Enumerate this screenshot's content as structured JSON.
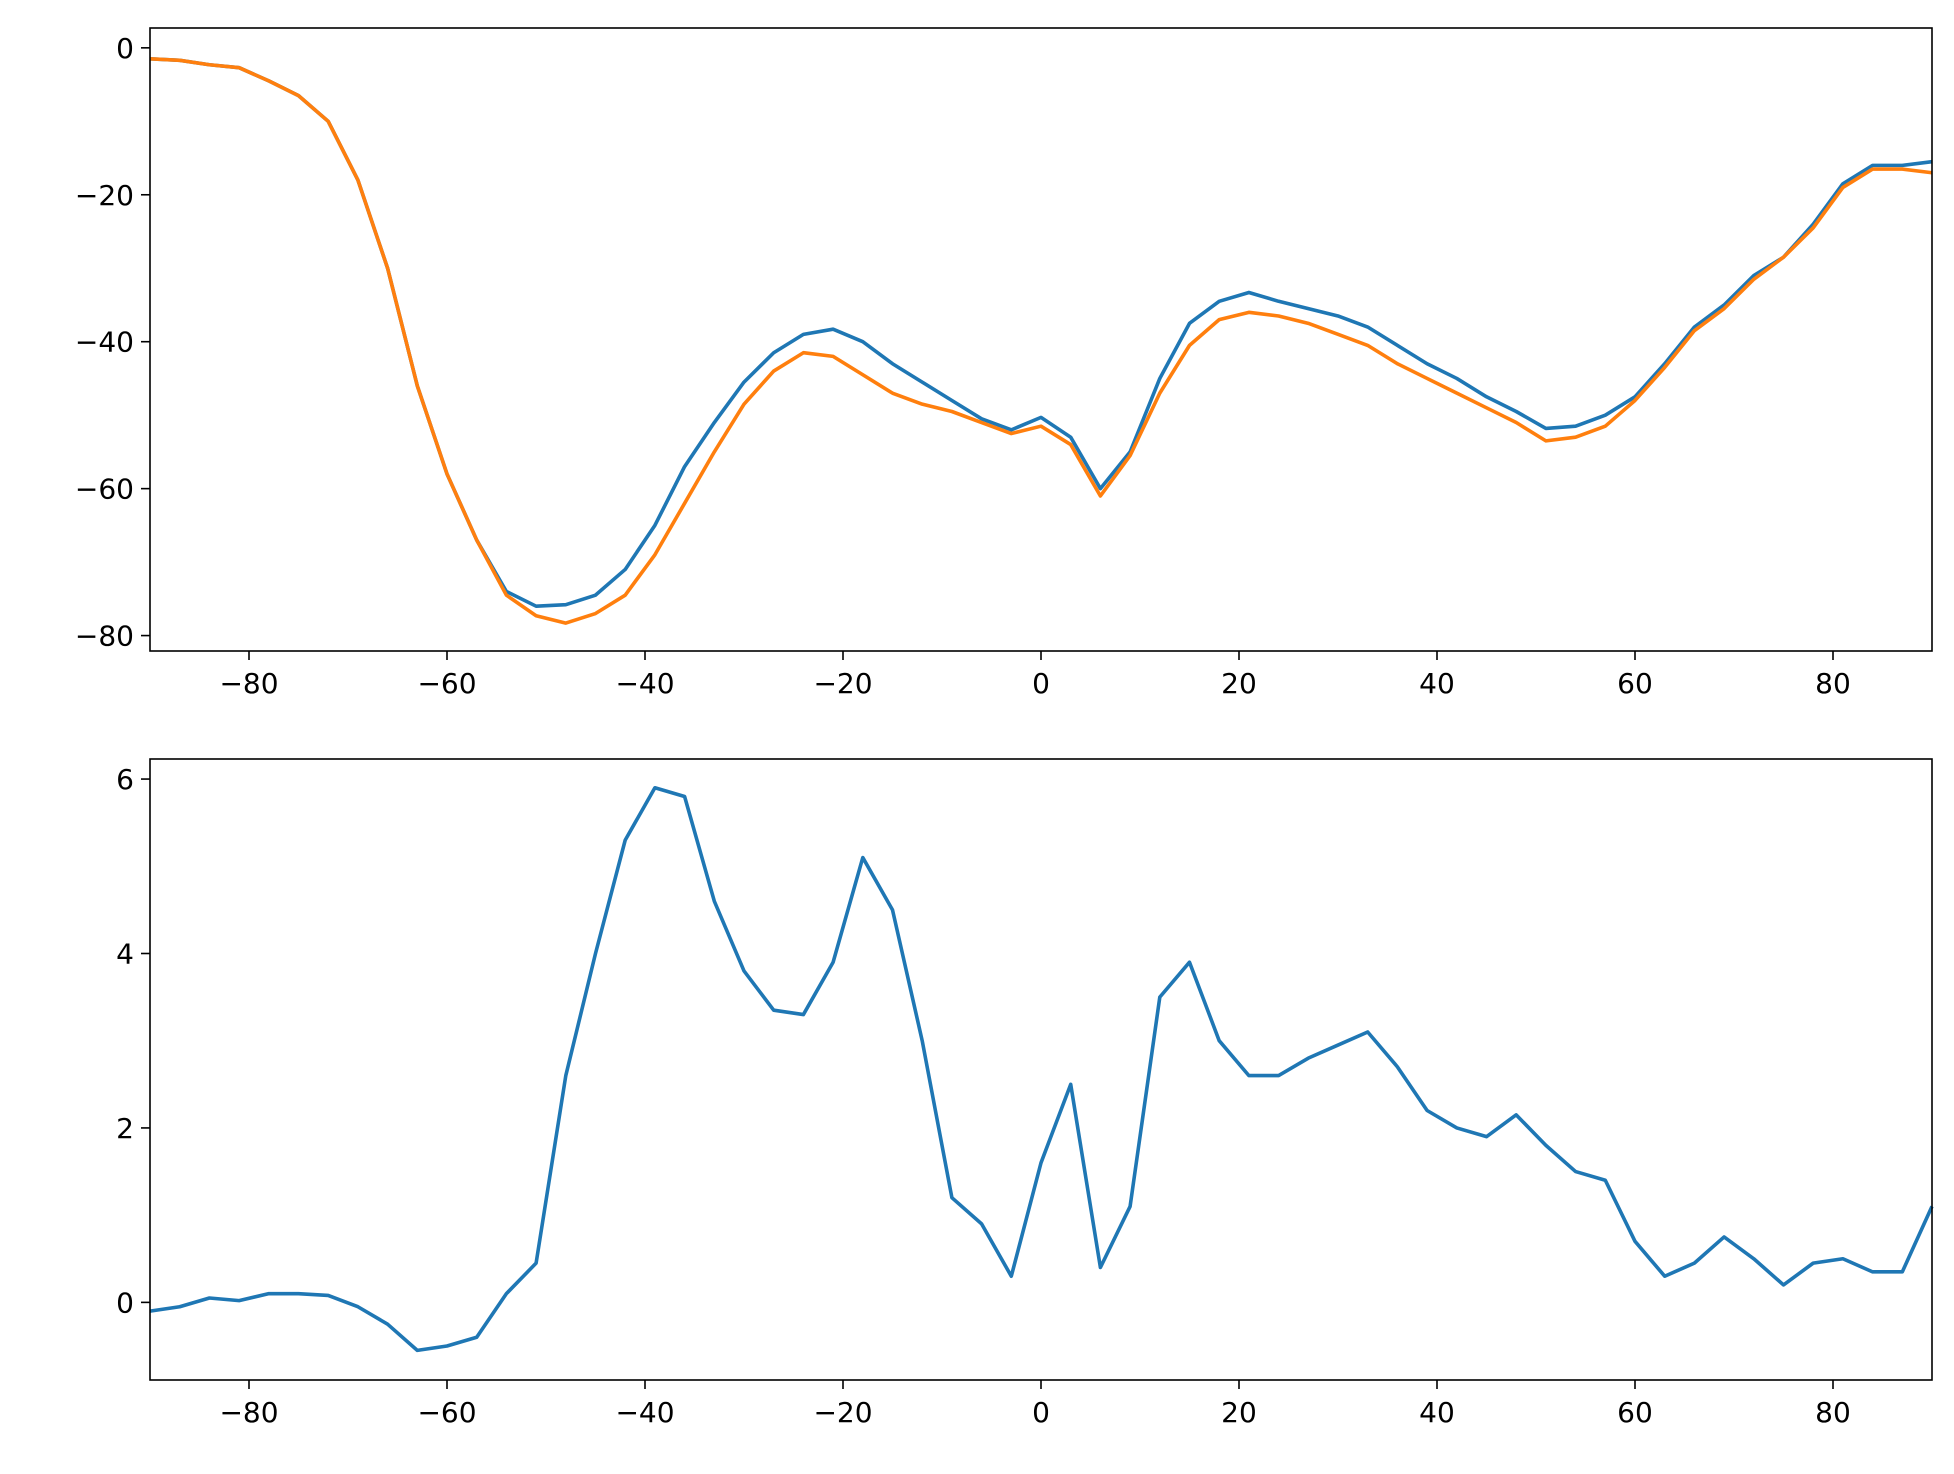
{
  "chart_data": [
    {
      "type": "line",
      "x": [
        -90,
        -87,
        -84,
        -81,
        -78,
        -75,
        -72,
        -69,
        -66,
        -63,
        -60,
        -57,
        -54,
        -51,
        -48,
        -45,
        -42,
        -39,
        -36,
        -33,
        -30,
        -27,
        -24,
        -21,
        -18,
        -15,
        -12,
        -9,
        -6,
        -3,
        0,
        3,
        6,
        9,
        12,
        15,
        18,
        21,
        24,
        27,
        30,
        33,
        36,
        39,
        42,
        45,
        48,
        51,
        54,
        57,
        60,
        63,
        66,
        69,
        72,
        75,
        78,
        81,
        84,
        87,
        90
      ],
      "series": [
        {
          "color": "#1f77b4",
          "values": [
            -1.5,
            -1.7,
            -2.3,
            -2.7,
            -4.5,
            -6.5,
            -10,
            -18,
            -30,
            -46,
            -58,
            -67,
            -74,
            -76,
            -75.8,
            -74.5,
            -71,
            -65,
            -57,
            -51,
            -45.5,
            -41.5,
            -39,
            -38.3,
            -40,
            -43,
            -45.5,
            -48,
            -50.5,
            -52,
            -50.3,
            -53,
            -60,
            -55,
            -45,
            -37.5,
            -34.5,
            -33.3,
            -34.5,
            -35.5,
            -36.5,
            -38,
            -40.5,
            -43,
            -45,
            -47.5,
            -49.5,
            -51.8,
            -51.5,
            -50,
            -47.5,
            -43,
            -38,
            -35,
            -31,
            -28.5,
            -24,
            -18.5,
            -16,
            -16,
            -15.5
          ]
        },
        {
          "color": "#ff7f0e",
          "values": [
            -1.5,
            -1.7,
            -2.3,
            -2.7,
            -4.5,
            -6.5,
            -10,
            -18,
            -30,
            -46,
            -58,
            -67,
            -74.5,
            -77.3,
            -78.3,
            -77,
            -74.5,
            -69,
            -62,
            -55,
            -48.5,
            -44,
            -41.5,
            -42,
            -44.5,
            -47,
            -48.5,
            -49.5,
            -51,
            -52.5,
            -51.5,
            -54,
            -61,
            -55.5,
            -47,
            -40.5,
            -37,
            -36,
            -36.5,
            -37.5,
            -39,
            -40.5,
            -43,
            -45,
            -47,
            -49,
            -51,
            -53.5,
            -53,
            -51.5,
            -48,
            -43.5,
            -38.5,
            -35.5,
            -31.5,
            -28.5,
            -24.5,
            -19,
            -16.5,
            -16.5,
            -17
          ]
        }
      ],
      "xlim": [
        -90,
        90
      ],
      "ylim": [
        -82.1,
        2.7
      ],
      "xticks": [
        {
          "value": -80,
          "label": "−80"
        },
        {
          "value": -60,
          "label": "−60"
        },
        {
          "value": -40,
          "label": "−40"
        },
        {
          "value": -20,
          "label": "−20"
        },
        0,
        20,
        40,
        60,
        80
      ],
      "yticks": [
        {
          "value": -80,
          "label": "−80"
        },
        {
          "value": -60,
          "label": "−60"
        },
        {
          "value": -40,
          "label": "−40"
        },
        {
          "value": -20,
          "label": "−20"
        },
        0
      ]
    },
    {
      "type": "line",
      "x": [
        -90,
        -87,
        -84,
        -81,
        -78,
        -75,
        -72,
        -69,
        -66,
        -63,
        -60,
        -57,
        -54,
        -51,
        -48,
        -45,
        -42,
        -39,
        -36,
        -33,
        -30,
        -27,
        -24,
        -21,
        -18,
        -15,
        -12,
        -9,
        -6,
        -3,
        0,
        3,
        6,
        9,
        12,
        15,
        18,
        21,
        24,
        27,
        30,
        33,
        36,
        39,
        42,
        45,
        48,
        51,
        54,
        57,
        60,
        63,
        66,
        69,
        72,
        75,
        78,
        81,
        84,
        87,
        90
      ],
      "series": [
        {
          "color": "#1f77b4",
          "values": [
            -0.1,
            -0.05,
            0.05,
            0.02,
            0.1,
            0.1,
            0.08,
            -0.05,
            -0.25,
            -0.55,
            -0.5,
            -0.4,
            0.1,
            0.45,
            2.6,
            4.0,
            5.3,
            5.9,
            5.8,
            4.6,
            3.8,
            3.35,
            3.3,
            3.9,
            5.1,
            4.5,
            3.0,
            1.2,
            0.9,
            0.3,
            1.6,
            2.5,
            0.4,
            1.1,
            3.5,
            3.9,
            3.0,
            2.6,
            2.6,
            2.8,
            2.95,
            3.1,
            2.7,
            2.2,
            2.0,
            1.9,
            2.15,
            1.8,
            1.5,
            1.4,
            0.7,
            0.3,
            0.45,
            0.75,
            0.5,
            0.2,
            0.45,
            0.5,
            0.35,
            0.35,
            1.1
          ]
        }
      ],
      "xlim": [
        -90,
        90
      ],
      "ylim": [
        -0.89,
        6.23
      ],
      "xticks": [
        {
          "value": -80,
          "label": "−80"
        },
        {
          "value": -60,
          "label": "−60"
        },
        {
          "value": -40,
          "label": "−40"
        },
        {
          "value": -20,
          "label": "−20"
        },
        0,
        20,
        40,
        60,
        80
      ],
      "yticks": [
        0,
        2,
        4,
        6
      ]
    }
  ]
}
